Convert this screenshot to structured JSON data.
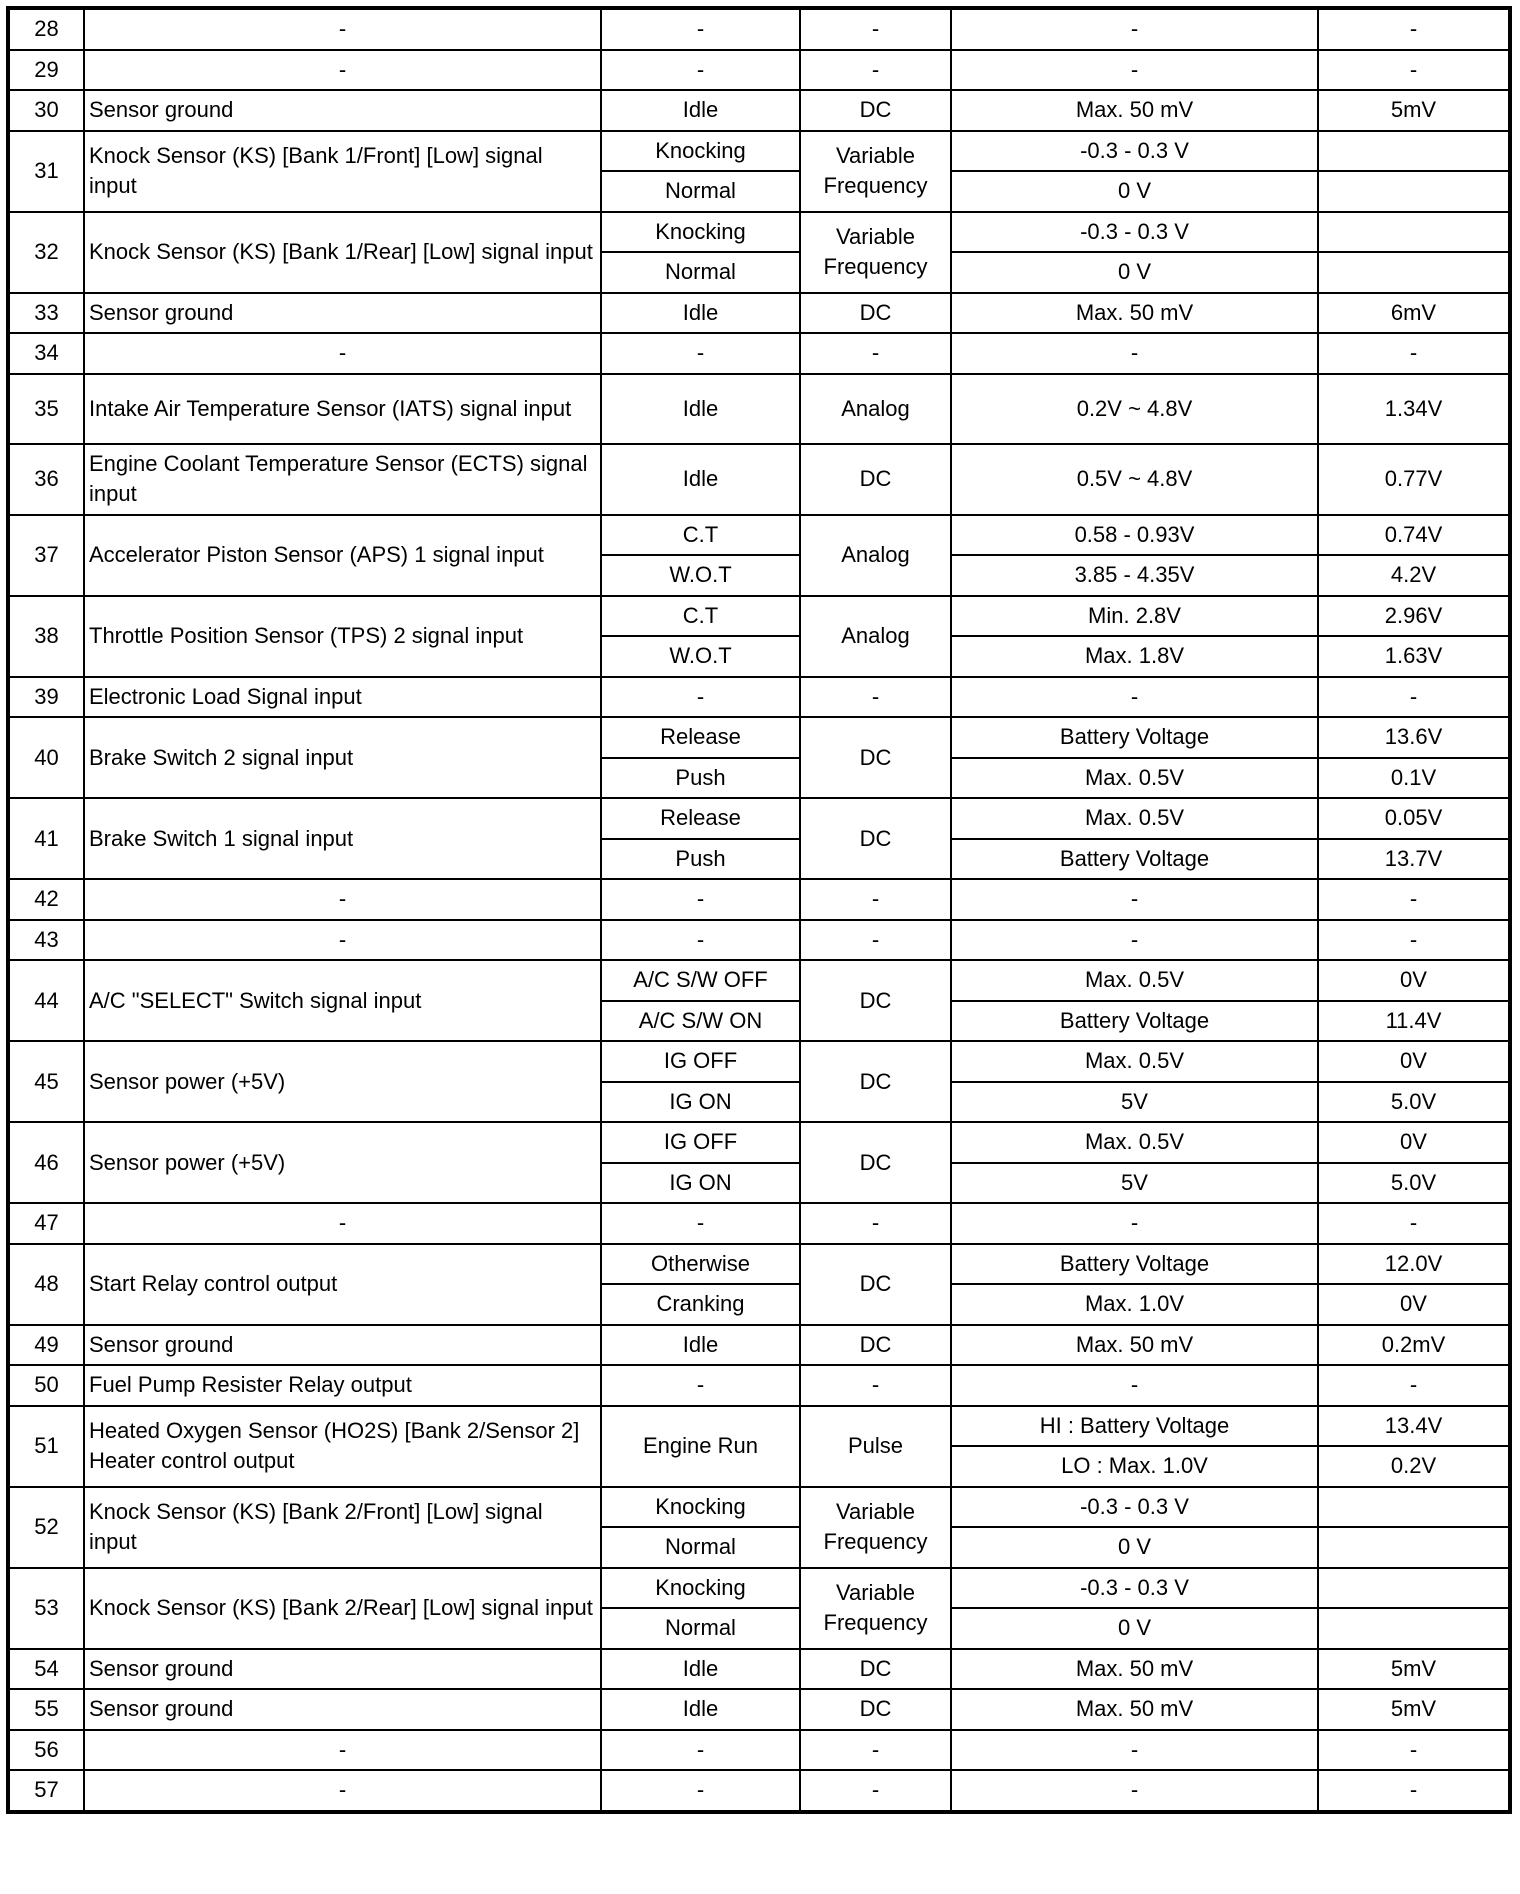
{
  "rows": [
    {
      "pin": "28",
      "desc": "-",
      "cond": "-",
      "type": "-",
      "spec": "-",
      "meas": "-"
    },
    {
      "pin": "29",
      "desc": "-",
      "cond": "-",
      "type": "-",
      "spec": "-",
      "meas": "-"
    },
    {
      "pin": "30",
      "desc": "Sensor ground",
      "cond": "Idle",
      "type": "DC",
      "spec": "Max. 50 mV",
      "meas": "5mV"
    },
    {
      "pin": "31",
      "desc": "Knock Sensor (KS) [Bank 1/Front] [Low] signal input",
      "cond": [
        "Knocking",
        "Normal"
      ],
      "type": "Variable Frequency",
      "spec": [
        "-0.3 - 0.3 V",
        "0 V"
      ],
      "meas": [
        "",
        ""
      ]
    },
    {
      "pin": "32",
      "desc": "Knock Sensor (KS) [Bank 1/Rear] [Low] signal input",
      "cond": [
        "Knocking",
        "Normal"
      ],
      "type": "Variable Frequency",
      "spec": [
        "-0.3 - 0.3 V",
        "0 V"
      ],
      "meas": [
        "",
        ""
      ]
    },
    {
      "pin": "33",
      "desc": "Sensor ground",
      "cond": "Idle",
      "type": "DC",
      "spec": "Max. 50 mV",
      "meas": "6mV"
    },
    {
      "pin": "34",
      "desc": "-",
      "cond": "-",
      "type": "-",
      "spec": "-",
      "meas": "-"
    },
    {
      "pin": "35",
      "desc": "Intake Air Temperature Sensor (IATS) signal input",
      "cond": "Idle",
      "type": "Analog",
      "spec": "0.2V ~ 4.8V",
      "meas": "1.34V",
      "tall": true
    },
    {
      "pin": "36",
      "desc": "Engine Coolant Temperature Sensor (ECTS) signal input",
      "cond": "Idle",
      "type": "DC",
      "spec": "0.5V ~ 4.8V",
      "meas": "0.77V",
      "tall": true
    },
    {
      "pin": "37",
      "desc": "Accelerator Piston Sensor (APS) 1 signal input",
      "cond": [
        "C.T",
        "W.O.T"
      ],
      "type": "Analog",
      "spec": [
        "0.58 - 0.93V",
        "3.85 - 4.35V"
      ],
      "meas": [
        "0.74V",
        "4.2V"
      ]
    },
    {
      "pin": "38",
      "desc": "Throttle Position Sensor (TPS) 2 signal input",
      "cond": [
        "C.T",
        "W.O.T"
      ],
      "type": "Analog",
      "spec": [
        "Min. 2.8V",
        "Max. 1.8V"
      ],
      "meas": [
        "2.96V",
        "1.63V"
      ]
    },
    {
      "pin": "39",
      "desc": "Electronic Load Signal input",
      "cond": "-",
      "type": "-",
      "spec": "-",
      "meas": "-"
    },
    {
      "pin": "40",
      "desc": "Brake Switch 2 signal input",
      "cond": [
        "Release",
        "Push"
      ],
      "type": "DC",
      "spec": [
        "Battery Voltage",
        "Max. 0.5V"
      ],
      "meas": [
        "13.6V",
        "0.1V"
      ]
    },
    {
      "pin": "41",
      "desc": "Brake Switch 1 signal input",
      "cond": [
        "Release",
        "Push"
      ],
      "type": "DC",
      "spec": [
        "Max. 0.5V",
        "Battery Voltage"
      ],
      "meas": [
        "0.05V",
        "13.7V"
      ]
    },
    {
      "pin": "42",
      "desc": "-",
      "cond": "-",
      "type": "-",
      "spec": "-",
      "meas": "-"
    },
    {
      "pin": "43",
      "desc": "-",
      "cond": "-",
      "type": "-",
      "spec": "-",
      "meas": "-"
    },
    {
      "pin": "44",
      "desc": "A/C \"SELECT\" Switch signal input",
      "cond": [
        "A/C S/W OFF",
        "A/C S/W ON"
      ],
      "type": "DC",
      "spec": [
        "Max. 0.5V",
        "Battery Voltage"
      ],
      "meas": [
        "0V",
        "11.4V"
      ]
    },
    {
      "pin": "45",
      "desc": "Sensor power (+5V)",
      "cond": [
        "IG OFF",
        "IG ON"
      ],
      "type": "DC",
      "spec": [
        "Max. 0.5V",
        "5V"
      ],
      "meas": [
        "0V",
        "5.0V"
      ]
    },
    {
      "pin": "46",
      "desc": "Sensor power (+5V)",
      "cond": [
        "IG OFF",
        "IG ON"
      ],
      "type": "DC",
      "spec": [
        "Max. 0.5V",
        "5V"
      ],
      "meas": [
        "0V",
        "5.0V"
      ]
    },
    {
      "pin": "47",
      "desc": "-",
      "cond": "-",
      "type": "-",
      "spec": "-",
      "meas": "-"
    },
    {
      "pin": "48",
      "desc": "Start Relay control output",
      "cond": [
        "Otherwise",
        "Cranking"
      ],
      "type": "DC",
      "spec": [
        "Battery Voltage",
        "Max. 1.0V"
      ],
      "meas": [
        "12.0V",
        "0V"
      ]
    },
    {
      "pin": "49",
      "desc": "Sensor ground",
      "cond": "Idle",
      "type": "DC",
      "spec": "Max. 50 mV",
      "meas": "0.2mV"
    },
    {
      "pin": "50",
      "desc": "Fuel Pump Resister Relay output",
      "cond": "-",
      "type": "-",
      "spec": "-",
      "meas": "-"
    },
    {
      "pin": "51",
      "desc": "Heated Oxygen Sensor (HO2S) [Bank 2/Sensor 2] Heater control output",
      "cond": "Engine Run",
      "type": "Pulse",
      "spec": [
        "HI : Battery Voltage",
        "LO : Max. 1.0V"
      ],
      "meas": [
        "13.4V",
        "0.2V"
      ]
    },
    {
      "pin": "52",
      "desc": "Knock Sensor (KS) [Bank 2/Front] [Low] signal input",
      "cond": [
        "Knocking",
        "Normal"
      ],
      "type": "Variable Frequency",
      "spec": [
        "-0.3 - 0.3 V",
        "0 V"
      ],
      "meas": [
        "",
        ""
      ]
    },
    {
      "pin": "53",
      "desc": "Knock Sensor (KS) [Bank 2/Rear] [Low] signal input",
      "cond": [
        "Knocking",
        "Normal"
      ],
      "type": "Variable Frequency",
      "spec": [
        "-0.3 - 0.3 V",
        "0 V"
      ],
      "meas": [
        "",
        ""
      ]
    },
    {
      "pin": "54",
      "desc": "Sensor ground",
      "cond": "Idle",
      "type": "DC",
      "spec": "Max. 50 mV",
      "meas": "5mV"
    },
    {
      "pin": "55",
      "desc": "Sensor ground",
      "cond": "Idle",
      "type": "DC",
      "spec": "Max. 50 mV",
      "meas": "5mV"
    },
    {
      "pin": "56",
      "desc": "-",
      "cond": "-",
      "type": "-",
      "spec": "-",
      "meas": "-"
    },
    {
      "pin": "57",
      "desc": "-",
      "cond": "-",
      "type": "-",
      "spec": "-",
      "meas": "-"
    }
  ]
}
